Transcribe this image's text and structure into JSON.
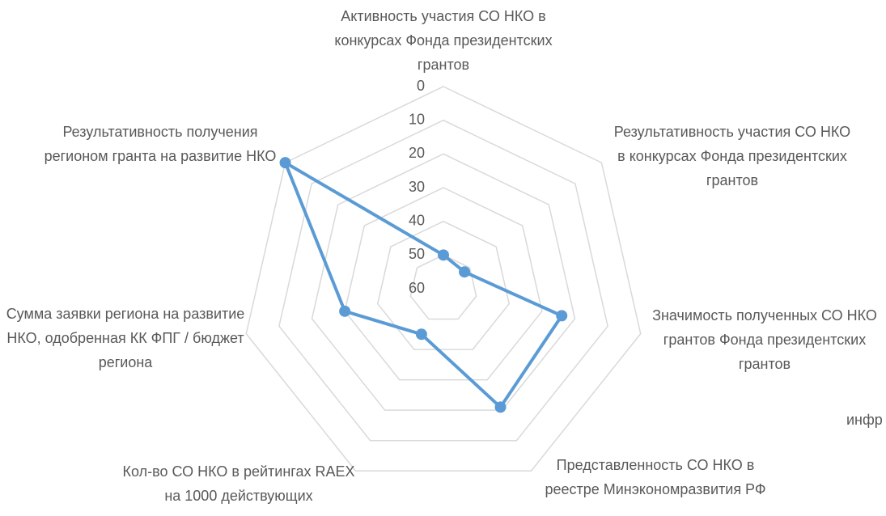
{
  "chart_data": {
    "type": "radar",
    "categories": [
      "Активность участия СО НКО в конкурсах Фонда президентских грантов",
      "Результативность участия СО НКО в конкурсах Фонда президентских грантов",
      "Значимость полученных СО НКО грантов Фонда президентских грантов",
      "Представленность СО НКО в реестре Минэкономразвития РФ",
      "Кол-во СО НКО в рейтингах RAEX на 1000 действующих",
      "Сумма заявки региона на развитие НКО, одобренная КК ФПГ / бюджет региона",
      "Результативность получения регионом гранта на развитие НКО"
    ],
    "values": [
      50,
      52,
      24,
      21,
      45,
      30,
      0
    ],
    "color": "#5b9bd5",
    "ylim": [
      60,
      0
    ],
    "yticks": [
      0,
      10,
      20,
      30,
      40,
      50,
      60
    ],
    "grid": true,
    "annotations": [
      "инфр"
    ]
  }
}
